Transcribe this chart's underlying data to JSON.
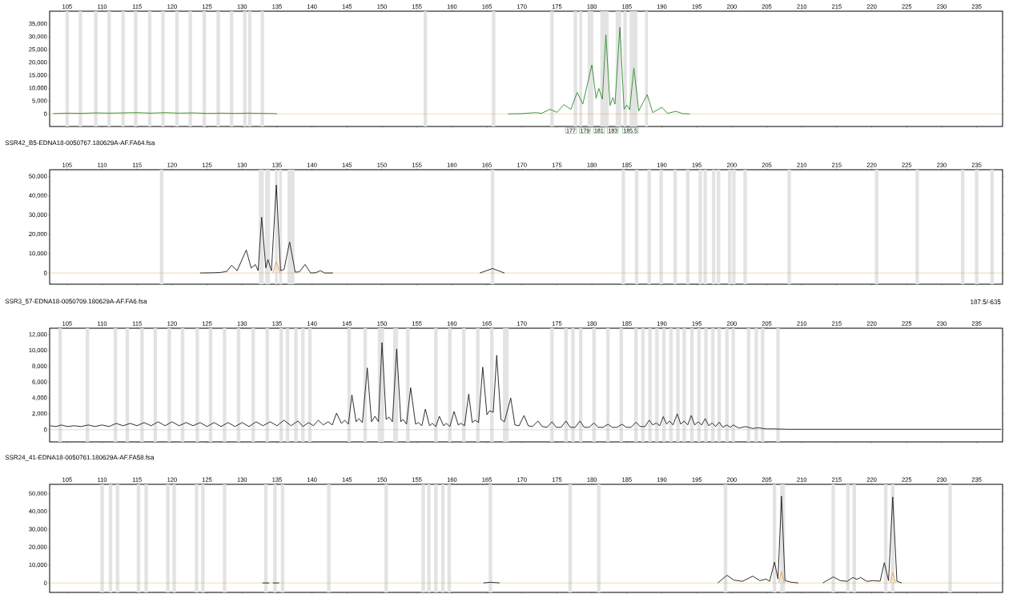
{
  "chart_data": [
    {
      "type": "line",
      "xlim": [
        102.5,
        238.7
      ],
      "ylim": [
        -4900,
        40000
      ],
      "xticks": [
        105,
        110,
        115,
        120,
        125,
        130,
        135,
        140,
        145,
        150,
        155,
        160,
        165,
        170,
        175,
        180,
        185,
        190,
        195,
        200,
        205,
        210,
        215,
        220,
        225,
        230,
        235
      ],
      "yticks": [
        0,
        {
          "value": 5000,
          "label": "5,000"
        },
        {
          "value": 10000,
          "label": "10,000"
        },
        {
          "value": 15000,
          "label": "15,000"
        },
        {
          "value": 20000,
          "label": "20,000"
        },
        {
          "value": 25000,
          "label": "25,000"
        },
        {
          "value": 30000,
          "label": "30,000"
        },
        {
          "value": 35000,
          "label": "35,000"
        }
      ],
      "series": [
        {
          "color": "#2f8a2f",
          "x": [
            103,
            105,
            107,
            109,
            111,
            113,
            115,
            117,
            119,
            121,
            123,
            125,
            127,
            129,
            131,
            133,
            135,
            136,
            168,
            170,
            172,
            172.8,
            174,
            175,
            176,
            177,
            177.9,
            178.7,
            180,
            180.6,
            181,
            181.5,
            182,
            182.6,
            183,
            183.3,
            184,
            184.6,
            185,
            185.4,
            186,
            186.7,
            187.9,
            188.7,
            190,
            190.8,
            192,
            193,
            194
          ],
          "values": [
            100,
            300,
            200,
            400,
            300,
            400,
            500,
            300,
            500,
            300,
            400,
            200,
            300,
            200,
            300,
            200,
            100,
            null,
            0,
            100,
            500,
            200,
            1800,
            600,
            3600,
            1800,
            8400,
            3800,
            19100,
            6100,
            9900,
            5700,
            30800,
            3300,
            6400,
            3800,
            33700,
            1800,
            3500,
            1600,
            17900,
            1200,
            7500,
            500,
            2600,
            200,
            1000,
            100,
            0
          ]
        }
      ],
      "ref_lines": [
        {
          "axis": "y",
          "value": 0,
          "color": "#d8a048"
        }
      ],
      "bands": [
        {
          "axis": "x",
          "from": 104.75,
          "to": 105.25,
          "color": "#e3e3e3"
        },
        {
          "axis": "x",
          "from": 106.65,
          "to": 107.15,
          "color": "#e3e3e3"
        },
        {
          "axis": "x",
          "from": 108.85,
          "to": 109.35,
          "color": "#e3e3e3"
        },
        {
          "axis": "x",
          "from": 110.75,
          "to": 111.25,
          "color": "#e3e3e3"
        },
        {
          "axis": "x",
          "from": 112.75,
          "to": 113.25,
          "color": "#e3e3e3"
        },
        {
          "axis": "x",
          "from": 114.55,
          "to": 115.05,
          "color": "#e3e3e3"
        },
        {
          "axis": "x",
          "from": 116.55,
          "to": 117.05,
          "color": "#e3e3e3"
        },
        {
          "axis": "x",
          "from": 118.45,
          "to": 118.95,
          "color": "#e3e3e3"
        },
        {
          "axis": "x",
          "from": 120.45,
          "to": 120.95,
          "color": "#e3e3e3"
        },
        {
          "axis": "x",
          "from": 122.35,
          "to": 122.85,
          "color": "#e3e3e3"
        },
        {
          "axis": "x",
          "from": 124.35,
          "to": 124.85,
          "color": "#e3e3e3"
        },
        {
          "axis": "x",
          "from": 126.35,
          "to": 126.85,
          "color": "#e3e3e3"
        },
        {
          "axis": "x",
          "from": 128.25,
          "to": 128.75,
          "color": "#e3e3e3"
        },
        {
          "axis": "x",
          "from": 130.15,
          "to": 130.65,
          "color": "#e3e3e3"
        },
        {
          "axis": "x",
          "from": 130.85,
          "to": 131.35,
          "color": "#e3e3e3"
        },
        {
          "axis": "x",
          "from": 132.65,
          "to": 133.15,
          "color": "#e3e3e3"
        },
        {
          "axis": "x",
          "from": 155.95,
          "to": 156.45,
          "color": "#e3e3e3"
        },
        {
          "axis": "x",
          "from": 165.7,
          "to": 166.2,
          "color": "#e3e3e3"
        },
        {
          "axis": "x",
          "from": 174.05,
          "to": 174.55,
          "color": "#e3e3e3"
        },
        {
          "axis": "x",
          "from": 177.4,
          "to": 177.9,
          "color": "#e3e3e3"
        },
        {
          "axis": "x",
          "from": 178.2,
          "to": 178.6,
          "color": "#e3e3e3"
        },
        {
          "axis": "x",
          "from": 179.4,
          "to": 180.2,
          "color": "#e3e3e3"
        },
        {
          "axis": "x",
          "from": 181.2,
          "to": 182.4,
          "color": "#e3e3e3"
        },
        {
          "axis": "x",
          "from": 183.4,
          "to": 184.2,
          "color": "#e3e3e3"
        },
        {
          "axis": "x",
          "from": 184.5,
          "to": 185.0,
          "color": "#e3e3e3"
        },
        {
          "axis": "x",
          "from": 185.4,
          "to": 186.5,
          "color": "#e3e3e3"
        },
        {
          "axis": "x",
          "from": 187.6,
          "to": 188.0,
          "color": "#e3e3e3"
        }
      ],
      "annotations": [
        {
          "text": "177",
          "x": 177
        },
        {
          "text": "179",
          "x": 179
        },
        {
          "text": "181",
          "x": 181
        },
        {
          "text": "183",
          "x": 183
        },
        {
          "text": "185.5",
          "x": 185.5
        }
      ]
    },
    {
      "type": "line",
      "title": "SSR42_B5-EDNA18-0050767.180629A-AF.FA64.fsa",
      "xlim": [
        102.5,
        238.7
      ],
      "ylim": [
        -5800,
        53500
      ],
      "xticks": [
        105,
        110,
        115,
        120,
        125,
        130,
        135,
        140,
        145,
        150,
        155,
        160,
        165,
        170,
        175,
        180,
        185,
        190,
        195,
        200,
        205,
        210,
        215,
        220,
        225,
        230,
        235
      ],
      "yticks": [
        0,
        {
          "value": 10000,
          "label": "10,000"
        },
        {
          "value": 20000,
          "label": "20,000"
        },
        {
          "value": 30000,
          "label": "30,000"
        },
        {
          "value": 40000,
          "label": "40,000"
        },
        {
          "value": 50000,
          "label": "50,000"
        }
      ],
      "series": [
        {
          "color": "#1a1a1a",
          "x": [
            124,
            126,
            127,
            127.8,
            128.5,
            129.3,
            130.6,
            131.3,
            131.9,
            132.3,
            132.8,
            133.4,
            133.7,
            134.2,
            134.9,
            135.5,
            136,
            136.8,
            137.6,
            138.2,
            139,
            139.8,
            140.5,
            141.2,
            141.8,
            143,
            150,
            164,
            165.8,
            167.5
          ],
          "values": [
            0,
            100,
            300,
            800,
            4000,
            1200,
            11900,
            2600,
            4400,
            1200,
            28900,
            2600,
            7000,
            1200,
            45600,
            1200,
            1800,
            16100,
            400,
            600,
            4400,
            0,
            100,
            1200,
            0,
            0,
            null,
            0,
            2300,
            0
          ]
        },
        {
          "color": "#e8a050",
          "x": [
            134.4,
            134.9,
            135.4
          ],
          "values": [
            0,
            5800,
            0
          ]
        }
      ],
      "ref_lines": [
        {
          "axis": "y",
          "value": 0,
          "color": "#d8a048"
        }
      ],
      "bands": [
        {
          "axis": "x",
          "from": 118.25,
          "to": 118.75,
          "color": "#e3e3e3"
        },
        {
          "axis": "x",
          "from": 132.4,
          "to": 133.1,
          "color": "#e3e3e3"
        },
        {
          "axis": "x",
          "from": 133.3,
          "to": 134.0,
          "color": "#e3e3e3"
        },
        {
          "axis": "x",
          "from": 134.7,
          "to": 135.1,
          "color": "#e3e3e3"
        },
        {
          "axis": "x",
          "from": 135.3,
          "to": 135.7,
          "color": "#e3e3e3"
        },
        {
          "axis": "x",
          "from": 136.5,
          "to": 137.5,
          "color": "#e3e3e3"
        },
        {
          "axis": "x",
          "from": 165.55,
          "to": 166.05,
          "color": "#e3e3e3"
        },
        {
          "axis": "x",
          "from": 184.25,
          "to": 184.75,
          "color": "#e3e3e3"
        },
        {
          "axis": "x",
          "from": 186.15,
          "to": 186.65,
          "color": "#e3e3e3"
        },
        {
          "axis": "x",
          "from": 187.95,
          "to": 188.45,
          "color": "#e3e3e3"
        },
        {
          "axis": "x",
          "from": 189.65,
          "to": 190.15,
          "color": "#e3e3e3"
        },
        {
          "axis": "x",
          "from": 191.65,
          "to": 192.15,
          "color": "#e3e3e3"
        },
        {
          "axis": "x",
          "from": 193.45,
          "to": 193.95,
          "color": "#e3e3e3"
        },
        {
          "axis": "x",
          "from": 195.25,
          "to": 195.75,
          "color": "#e3e3e3"
        },
        {
          "axis": "x",
          "from": 195.95,
          "to": 196.45,
          "color": "#e3e3e3"
        },
        {
          "axis": "x",
          "from": 197.15,
          "to": 197.65,
          "color": "#e3e3e3"
        },
        {
          "axis": "x",
          "from": 197.85,
          "to": 198.35,
          "color": "#e3e3e3"
        },
        {
          "axis": "x",
          "from": 199.45,
          "to": 199.95,
          "color": "#e3e3e3"
        },
        {
          "axis": "x",
          "from": 200.05,
          "to": 200.55,
          "color": "#e3e3e3"
        },
        {
          "axis": "x",
          "from": 201.65,
          "to": 202.15,
          "color": "#e3e3e3"
        },
        {
          "axis": "x",
          "from": 207.95,
          "to": 208.45,
          "color": "#e3e3e3"
        },
        {
          "axis": "x",
          "from": 220.45,
          "to": 220.95,
          "color": "#e3e3e3"
        },
        {
          "axis": "x",
          "from": 226.25,
          "to": 226.75,
          "color": "#e3e3e3"
        },
        {
          "axis": "x",
          "from": 232.75,
          "to": 233.25,
          "color": "#e3e3e3"
        },
        {
          "axis": "x",
          "from": 234.75,
          "to": 235.25,
          "color": "#e3e3e3"
        },
        {
          "axis": "x",
          "from": 236.95,
          "to": 237.45,
          "color": "#e3e3e3"
        }
      ]
    },
    {
      "type": "line",
      "title": "SSR3_57-EDNA18-0050709.180629A-AF.FA6.fsa",
      "xlim": [
        102.5,
        238.7
      ],
      "ylim": [
        -1540,
        12820
      ],
      "xticks": [
        105,
        110,
        115,
        120,
        125,
        130,
        135,
        140,
        145,
        150,
        155,
        160,
        165,
        170,
        175,
        180,
        185,
        190,
        195,
        200,
        205,
        210,
        215,
        220,
        225,
        230,
        235
      ],
      "yticks": [
        0,
        {
          "value": 2000,
          "label": "2,000"
        },
        {
          "value": 4000,
          "label": "4,000"
        },
        {
          "value": 6000,
          "label": "6,000"
        },
        {
          "value": 8000,
          "label": "8,000"
        },
        {
          "value": 10000,
          "label": "10,000"
        },
        {
          "value": 12000,
          "label": "12,000"
        }
      ],
      "series": [
        {
          "color": "#1a1a1a",
          "x": [
            102.6,
            103.4,
            104.2,
            105,
            106,
            107,
            108,
            109,
            110,
            111,
            112,
            113,
            114,
            115,
            116,
            117,
            118,
            119,
            120,
            121,
            122,
            123,
            124,
            125,
            126,
            127,
            128,
            129,
            130,
            131,
            132,
            133,
            134,
            135,
            136,
            137,
            138,
            138.7,
            139.5,
            140.2,
            140.9,
            141.6,
            142.3,
            142.9,
            143.5,
            144.2,
            144.7,
            145.2,
            145.7,
            146.3,
            146.7,
            147.2,
            147.9,
            148.5,
            149,
            149.5,
            150,
            150.6,
            151,
            151.5,
            152.1,
            152.7,
            153,
            153.5,
            154.1,
            154.8,
            155.2,
            155.7,
            156.2,
            156.8,
            157.2,
            157.7,
            158.2,
            158.8,
            159.2,
            159.7,
            160.3,
            160.9,
            161.3,
            161.8,
            162.4,
            162.9,
            163.3,
            163.8,
            164.4,
            165,
            165.4,
            165.9,
            166.4,
            167,
            167.5,
            168.4,
            169,
            169.6,
            170.3,
            170.9,
            171.5,
            172.3,
            172.9,
            173.6,
            174.3,
            174.9,
            175.6,
            176.3,
            176.9,
            177.6,
            178.3,
            178.9,
            179.6,
            180.3,
            180.9,
            181.6,
            182.3,
            182.9,
            183.6,
            184.3,
            184.9,
            185.6,
            186.3,
            186.9,
            187.6,
            188.2,
            188.7,
            189.2,
            189.7,
            190.2,
            190.7,
            191.1,
            191.6,
            192.2,
            192.7,
            193.2,
            193.7,
            194.2,
            194.7,
            195.2,
            195.7,
            196.2,
            196.7,
            197.2,
            197.7,
            198.2,
            198.7,
            199.3,
            199.8,
            200.2,
            201,
            202,
            203,
            203.7,
            205,
            206,
            208,
            215,
            225,
            238.5
          ],
          "values": [
            500,
            400,
            600,
            400,
            500,
            400,
            600,
            400,
            600,
            400,
            800,
            500,
            800,
            500,
            900,
            500,
            1000,
            500,
            1000,
            500,
            900,
            500,
            900,
            400,
            900,
            400,
            900,
            400,
            900,
            400,
            1000,
            500,
            1000,
            500,
            1200,
            500,
            1100,
            400,
            900,
            500,
            1200,
            600,
            1000,
            600,
            2100,
            800,
            1200,
            700,
            4400,
            1000,
            1400,
            900,
            7800,
            1000,
            1700,
            1000,
            11000,
            1300,
            1600,
            1000,
            10200,
            1000,
            1300,
            700,
            5300,
            700,
            900,
            500,
            2600,
            500,
            800,
            400,
            1700,
            500,
            800,
            400,
            2300,
            600,
            800,
            500,
            4500,
            900,
            1200,
            900,
            7900,
            1900,
            2400,
            2200,
            9400,
            1300,
            1000,
            4000,
            600,
            500,
            1800,
            500,
            400,
            1100,
            400,
            300,
            1000,
            300,
            300,
            1100,
            300,
            300,
            1100,
            300,
            300,
            850,
            300,
            300,
            700,
            300,
            300,
            700,
            300,
            300,
            950,
            400,
            400,
            1200,
            600,
            850,
            500,
            1650,
            700,
            1100,
            600,
            2000,
            700,
            1100,
            600,
            1800,
            600,
            1000,
            600,
            1400,
            500,
            850,
            400,
            950,
            300,
            600,
            300,
            600,
            200,
            400,
            150,
            250,
            100,
            100,
            50,
            50,
            50,
            50
          ]
        }
      ],
      "ref_lines": [
        {
          "axis": "y",
          "value": 0,
          "color": "#d8a048"
        }
      ],
      "bands": [
        {
          "axis": "x",
          "from": 103.75,
          "to": 104.25,
          "color": "#e3e3e3"
        },
        {
          "axis": "x",
          "from": 107.65,
          "to": 108.15,
          "color": "#e3e3e3"
        },
        {
          "axis": "x",
          "from": 111.65,
          "to": 112.15,
          "color": "#e3e3e3"
        },
        {
          "axis": "x",
          "from": 113.35,
          "to": 113.85,
          "color": "#e3e3e3"
        },
        {
          "axis": "x",
          "from": 115.45,
          "to": 115.95,
          "color": "#e3e3e3"
        },
        {
          "axis": "x",
          "from": 117.35,
          "to": 117.85,
          "color": "#e3e3e3"
        },
        {
          "axis": "x",
          "from": 119.35,
          "to": 119.85,
          "color": "#e3e3e3"
        },
        {
          "axis": "x",
          "from": 121.25,
          "to": 121.75,
          "color": "#e3e3e3"
        },
        {
          "axis": "x",
          "from": 123.35,
          "to": 123.85,
          "color": "#e3e3e3"
        },
        {
          "axis": "x",
          "from": 125.25,
          "to": 125.75,
          "color": "#e3e3e3"
        },
        {
          "axis": "x",
          "from": 127.25,
          "to": 127.75,
          "color": "#e3e3e3"
        },
        {
          "axis": "x",
          "from": 129.25,
          "to": 129.75,
          "color": "#e3e3e3"
        },
        {
          "axis": "x",
          "from": 131.35,
          "to": 131.85,
          "color": "#e3e3e3"
        },
        {
          "axis": "x",
          "from": 133.35,
          "to": 133.85,
          "color": "#e3e3e3"
        },
        {
          "axis": "x",
          "from": 135.35,
          "to": 135.85,
          "color": "#e3e3e3"
        },
        {
          "axis": "x",
          "from": 136.25,
          "to": 136.75,
          "color": "#e3e3e3"
        },
        {
          "axis": "x",
          "from": 137.45,
          "to": 137.95,
          "color": "#e3e3e3"
        },
        {
          "axis": "x",
          "from": 138.45,
          "to": 138.95,
          "color": "#e3e3e3"
        },
        {
          "axis": "x",
          "from": 139.45,
          "to": 139.95,
          "color": "#e3e3e3"
        },
        {
          "axis": "x",
          "from": 145.05,
          "to": 145.55,
          "color": "#e3e3e3"
        },
        {
          "axis": "x",
          "from": 147.35,
          "to": 147.85,
          "color": "#e3e3e3"
        },
        {
          "axis": "x",
          "from": 149.4,
          "to": 150.3,
          "color": "#e3e3e3"
        },
        {
          "axis": "x",
          "from": 151.6,
          "to": 152.3,
          "color": "#e3e3e3"
        },
        {
          "axis": "x",
          "from": 153.45,
          "to": 153.95,
          "color": "#e3e3e3"
        },
        {
          "axis": "x",
          "from": 157.45,
          "to": 157.95,
          "color": "#e3e3e3"
        },
        {
          "axis": "x",
          "from": 159.45,
          "to": 159.95,
          "color": "#e3e3e3"
        },
        {
          "axis": "x",
          "from": 161.45,
          "to": 161.95,
          "color": "#e3e3e3"
        },
        {
          "axis": "x",
          "from": 163.45,
          "to": 163.95,
          "color": "#e3e3e3"
        },
        {
          "axis": "x",
          "from": 165.45,
          "to": 165.95,
          "color": "#e3e3e3"
        },
        {
          "axis": "x",
          "from": 167.3,
          "to": 168.1,
          "color": "#e3e3e3"
        },
        {
          "axis": "x",
          "from": 174.05,
          "to": 174.55,
          "color": "#e3e3e3"
        },
        {
          "axis": "x",
          "from": 176.05,
          "to": 176.55,
          "color": "#e3e3e3"
        },
        {
          "axis": "x",
          "from": 177.05,
          "to": 177.55,
          "color": "#e3e3e3"
        },
        {
          "axis": "x",
          "from": 178.15,
          "to": 178.65,
          "color": "#e3e3e3"
        },
        {
          "axis": "x",
          "from": 180.05,
          "to": 180.55,
          "color": "#e3e3e3"
        },
        {
          "axis": "x",
          "from": 182.05,
          "to": 182.55,
          "color": "#e3e3e3"
        },
        {
          "axis": "x",
          "from": 183.95,
          "to": 184.45,
          "color": "#e3e3e3"
        },
        {
          "axis": "x",
          "from": 186.05,
          "to": 186.55,
          "color": "#e3e3e3"
        },
        {
          "axis": "x",
          "from": 187.05,
          "to": 187.55,
          "color": "#e3e3e3"
        },
        {
          "axis": "x",
          "from": 188.05,
          "to": 188.55,
          "color": "#e3e3e3"
        },
        {
          "axis": "x",
          "from": 189.05,
          "to": 189.55,
          "color": "#e3e3e3"
        },
        {
          "axis": "x",
          "from": 190.05,
          "to": 190.55,
          "color": "#e3e3e3"
        },
        {
          "axis": "x",
          "from": 191.05,
          "to": 191.55,
          "color": "#e3e3e3"
        },
        {
          "axis": "x",
          "from": 192.05,
          "to": 192.55,
          "color": "#e3e3e3"
        },
        {
          "axis": "x",
          "from": 192.95,
          "to": 193.45,
          "color": "#e3e3e3"
        },
        {
          "axis": "x",
          "from": 194.05,
          "to": 194.55,
          "color": "#e3e3e3"
        },
        {
          "axis": "x",
          "from": 195.05,
          "to": 195.55,
          "color": "#e3e3e3"
        },
        {
          "axis": "x",
          "from": 196.05,
          "to": 196.55,
          "color": "#e3e3e3"
        },
        {
          "axis": "x",
          "from": 197.05,
          "to": 197.55,
          "color": "#e3e3e3"
        },
        {
          "axis": "x",
          "from": 197.95,
          "to": 198.45,
          "color": "#e3e3e3"
        },
        {
          "axis": "x",
          "from": 199.05,
          "to": 199.55,
          "color": "#e3e3e3"
        },
        {
          "axis": "x",
          "from": 199.95,
          "to": 200.45,
          "color": "#e3e3e3"
        },
        {
          "axis": "x",
          "from": 202.15,
          "to": 202.65,
          "color": "#e3e3e3"
        },
        {
          "axis": "x",
          "from": 203.25,
          "to": 203.75,
          "color": "#e3e3e3"
        },
        {
          "axis": "x",
          "from": 204.15,
          "to": 204.65,
          "color": "#e3e3e3"
        },
        {
          "axis": "x",
          "from": 206.35,
          "to": 206.85,
          "color": "#e3e3e3"
        }
      ],
      "annotations": [
        "187.5/-635"
      ]
    },
    {
      "type": "line",
      "title": "SSR24_41-EDNA18-0050761.180629A-AF.FA58.fsa",
      "xlim": [
        102.5,
        238.7
      ],
      "ylim": [
        -5300,
        55300
      ],
      "xticks": [
        105,
        110,
        115,
        120,
        125,
        130,
        135,
        140,
        145,
        150,
        155,
        160,
        165,
        170,
        175,
        180,
        185,
        190,
        195,
        200,
        205,
        210,
        215,
        220,
        225,
        230,
        235
      ],
      "yticks": [
        0,
        {
          "value": 10000,
          "label": "10,000"
        },
        {
          "value": 20000,
          "label": "20,000"
        },
        {
          "value": 30000,
          "label": "30,000"
        },
        {
          "value": 40000,
          "label": "40,000"
        },
        {
          "value": 50000,
          "label": "50,000"
        }
      ],
      "series": [
        {
          "color": "#1a1a1a",
          "x": [
            132.9,
            133.9,
            134.2,
            134.4,
            135.3,
            135.5,
            164.5,
            165.5,
            166.8,
            180,
            198,
            199.3,
            200.3,
            201.5,
            203,
            204,
            204.9,
            205.4,
            206.1,
            206.6,
            207.1,
            207.6,
            208.5,
            209.5,
            211,
            213,
            214.5,
            215.5,
            216.5,
            217.3,
            217.9,
            218.4,
            219.3,
            220.2,
            221.2,
            221.8,
            222.4,
            223,
            223.6,
            224.3
          ],
          "values": [
            0,
            0,
            null,
            0,
            0,
            null,
            0,
            400,
            0,
            null,
            0,
            4300,
            1600,
            900,
            3800,
            1300,
            2200,
            900,
            11700,
            2200,
            48700,
            1300,
            400,
            0,
            null,
            0,
            3400,
            1300,
            900,
            3100,
            2000,
            3100,
            900,
            1300,
            1000,
            11400,
            1300,
            48200,
            900,
            0
          ]
        },
        {
          "color": "#e8a050",
          "x": [
            206.7,
            207.1,
            207.5,
            215,
            222.6,
            223,
            223.4
          ],
          "values": [
            0,
            6300,
            0,
            null,
            0,
            5800,
            0
          ]
        }
      ],
      "ref_lines": [
        {
          "axis": "y",
          "value": 0,
          "color": "#d8a048"
        }
      ],
      "bands": [
        {
          "axis": "x",
          "from": 109.75,
          "to": 110.25,
          "color": "#e3e3e3"
        },
        {
          "axis": "x",
          "from": 110.95,
          "to": 111.45,
          "color": "#e3e3e3"
        },
        {
          "axis": "x",
          "from": 111.95,
          "to": 112.45,
          "color": "#e3e3e3"
        },
        {
          "axis": "x",
          "from": 114.95,
          "to": 115.45,
          "color": "#e3e3e3"
        },
        {
          "axis": "x",
          "from": 116.05,
          "to": 116.55,
          "color": "#e3e3e3"
        },
        {
          "axis": "x",
          "from": 119.15,
          "to": 119.65,
          "color": "#e3e3e3"
        },
        {
          "axis": "x",
          "from": 120.05,
          "to": 120.55,
          "color": "#e3e3e3"
        },
        {
          "axis": "x",
          "from": 123.25,
          "to": 123.75,
          "color": "#e3e3e3"
        },
        {
          "axis": "x",
          "from": 124.15,
          "to": 124.65,
          "color": "#e3e3e3"
        },
        {
          "axis": "x",
          "from": 127.25,
          "to": 127.75,
          "color": "#e3e3e3"
        },
        {
          "axis": "x",
          "from": 133.15,
          "to": 133.65,
          "color": "#e3e3e3"
        },
        {
          "axis": "x",
          "from": 134.45,
          "to": 134.95,
          "color": "#e3e3e3"
        },
        {
          "axis": "x",
          "from": 135.55,
          "to": 136.05,
          "color": "#e3e3e3"
        },
        {
          "axis": "x",
          "from": 142.15,
          "to": 142.65,
          "color": "#e3e3e3"
        },
        {
          "axis": "x",
          "from": 150.35,
          "to": 150.85,
          "color": "#e3e3e3"
        },
        {
          "axis": "x",
          "from": 155.65,
          "to": 156.15,
          "color": "#e3e3e3"
        },
        {
          "axis": "x",
          "from": 156.45,
          "to": 156.95,
          "color": "#e3e3e3"
        },
        {
          "axis": "x",
          "from": 157.45,
          "to": 157.95,
          "color": "#e3e3e3"
        },
        {
          "axis": "x",
          "from": 158.45,
          "to": 158.95,
          "color": "#e3e3e3"
        },
        {
          "axis": "x",
          "from": 159.35,
          "to": 159.85,
          "color": "#e3e3e3"
        },
        {
          "axis": "x",
          "from": 165.25,
          "to": 165.75,
          "color": "#e3e3e3"
        },
        {
          "axis": "x",
          "from": 176.65,
          "to": 177.15,
          "color": "#e3e3e3"
        },
        {
          "axis": "x",
          "from": 180.75,
          "to": 181.25,
          "color": "#e3e3e3"
        },
        {
          "axis": "x",
          "from": 198.85,
          "to": 199.35,
          "color": "#e3e3e3"
        },
        {
          "axis": "x",
          "from": 205.85,
          "to": 206.35,
          "color": "#e3e3e3"
        },
        {
          "axis": "x",
          "from": 206.9,
          "to": 207.6,
          "color": "#e3e3e3"
        },
        {
          "axis": "x",
          "from": 214.25,
          "to": 214.75,
          "color": "#e3e3e3"
        },
        {
          "axis": "x",
          "from": 216.35,
          "to": 216.85,
          "color": "#e3e3e3"
        },
        {
          "axis": "x",
          "from": 217.25,
          "to": 217.75,
          "color": "#e3e3e3"
        },
        {
          "axis": "x",
          "from": 221.75,
          "to": 222.25,
          "color": "#e3e3e3"
        },
        {
          "axis": "x",
          "from": 222.75,
          "to": 223.25,
          "color": "#e3e3e3"
        },
        {
          "axis": "x",
          "from": 230.95,
          "to": 231.45,
          "color": "#e3e3e3"
        }
      ]
    }
  ]
}
